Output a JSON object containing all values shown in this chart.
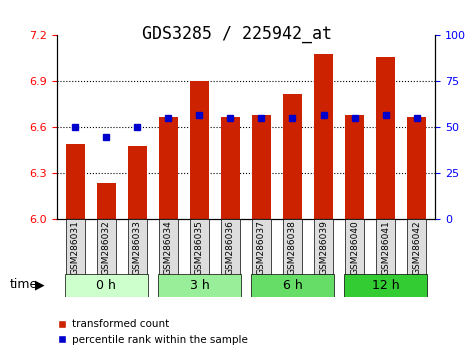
{
  "title": "GDS3285 / 225942_at",
  "samples": [
    "GSM286031",
    "GSM286032",
    "GSM286033",
    "GSM286034",
    "GSM286035",
    "GSM286036",
    "GSM286037",
    "GSM286038",
    "GSM286039",
    "GSM286040",
    "GSM286041",
    "GSM286042"
  ],
  "bar_values": [
    6.49,
    6.24,
    6.48,
    6.67,
    6.9,
    6.67,
    6.68,
    6.82,
    7.08,
    6.68,
    7.06,
    6.67
  ],
  "percentile_values": [
    50,
    45,
    50,
    55,
    57,
    55,
    55,
    55,
    57,
    55,
    57,
    55
  ],
  "bar_color": "#CC2200",
  "percentile_color": "#0000CC",
  "ylim_left": [
    6.0,
    7.2
  ],
  "ylim_right": [
    0,
    100
  ],
  "yticks_left": [
    6.0,
    6.3,
    6.6,
    6.9,
    7.2
  ],
  "yticks_right": [
    0,
    25,
    50,
    75,
    100
  ],
  "bar_width": 0.6,
  "groups": [
    {
      "label": "0 h",
      "indices": [
        0,
        1,
        2
      ],
      "color": "#ccffcc"
    },
    {
      "label": "3 h",
      "indices": [
        3,
        4,
        5
      ],
      "color": "#99ee99"
    },
    {
      "label": "6 h",
      "indices": [
        6,
        7,
        8
      ],
      "color": "#66dd66"
    },
    {
      "label": "12 h",
      "indices": [
        9,
        10,
        11
      ],
      "color": "#33cc33"
    }
  ],
  "xlabel": "time",
  "grid_color": "#000000",
  "bg_color": "#ffffff",
  "tick_label_area_color": "#dddddd",
  "title_fontsize": 12,
  "axis_fontsize": 9,
  "tick_fontsize": 8
}
